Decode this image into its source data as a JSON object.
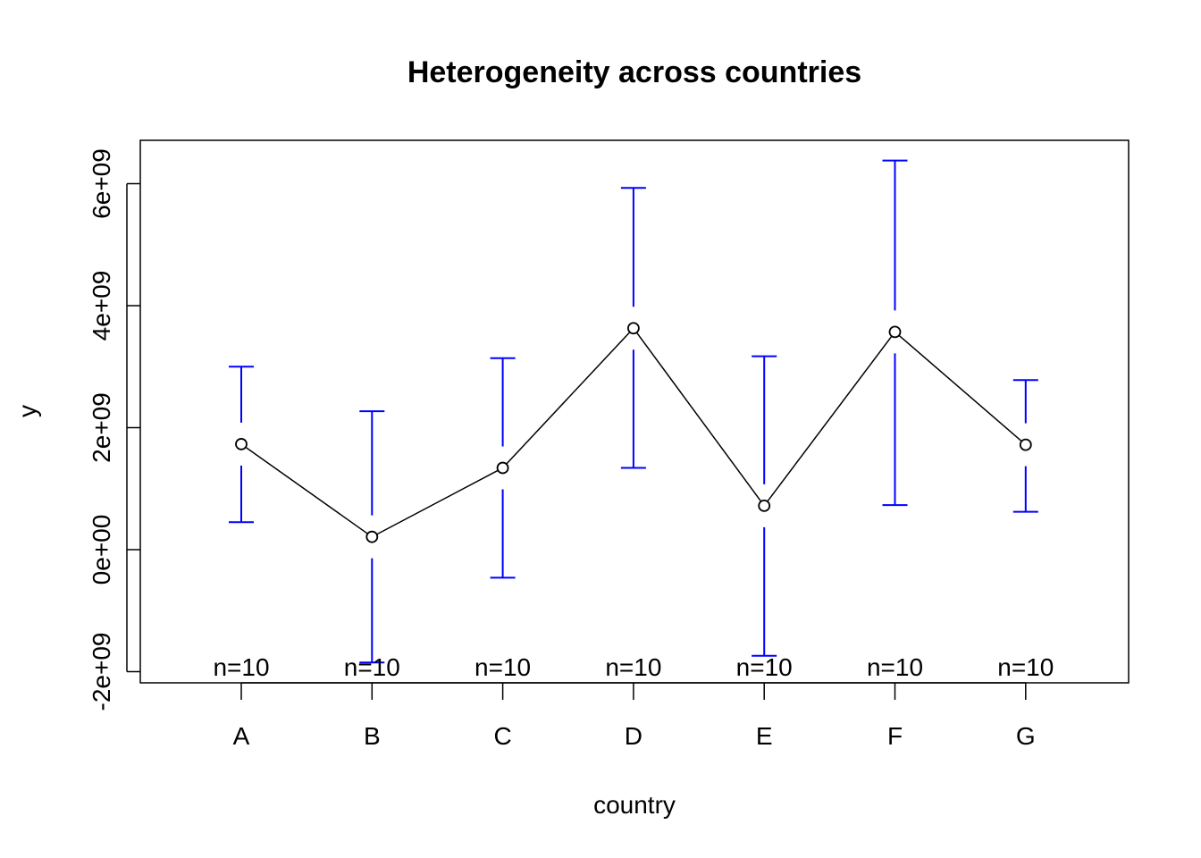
{
  "chart_data": {
    "type": "line",
    "title": "Heterogeneity across countries",
    "xlabel": "country",
    "ylabel": "y",
    "categories": [
      "A",
      "B",
      "C",
      "D",
      "E",
      "F",
      "G"
    ],
    "means": [
      1730000000.0,
      210000000.0,
      1340000000.0,
      3630000000.0,
      720000000.0,
      3570000000.0,
      1720000000.0
    ],
    "ci_lower": [
      450000000.0,
      -1850000000.0,
      -460000000.0,
      1340000000.0,
      -1740000000.0,
      730000000.0,
      620000000.0
    ],
    "ci_upper": [
      3000000000.0,
      2270000000.0,
      3140000000.0,
      5930000000.0,
      3170000000.0,
      6380000000.0,
      2780000000.0
    ],
    "n_labels": [
      "n=10",
      "n=10",
      "n=10",
      "n=10",
      "n=10",
      "n=10",
      "n=10"
    ],
    "ylim": [
      -2200000000.0,
      6700000000.0
    ],
    "y_ticks": [
      -2000000000.0,
      0,
      2000000000.0,
      4000000000.0,
      6000000000.0
    ],
    "y_tick_labels": [
      "-2e+09",
      "0e+00",
      "2e+09",
      "4e+09",
      "6e+09"
    ],
    "grid": false,
    "colors": {
      "line": "#000000",
      "error_bars": "#0000ff"
    }
  }
}
